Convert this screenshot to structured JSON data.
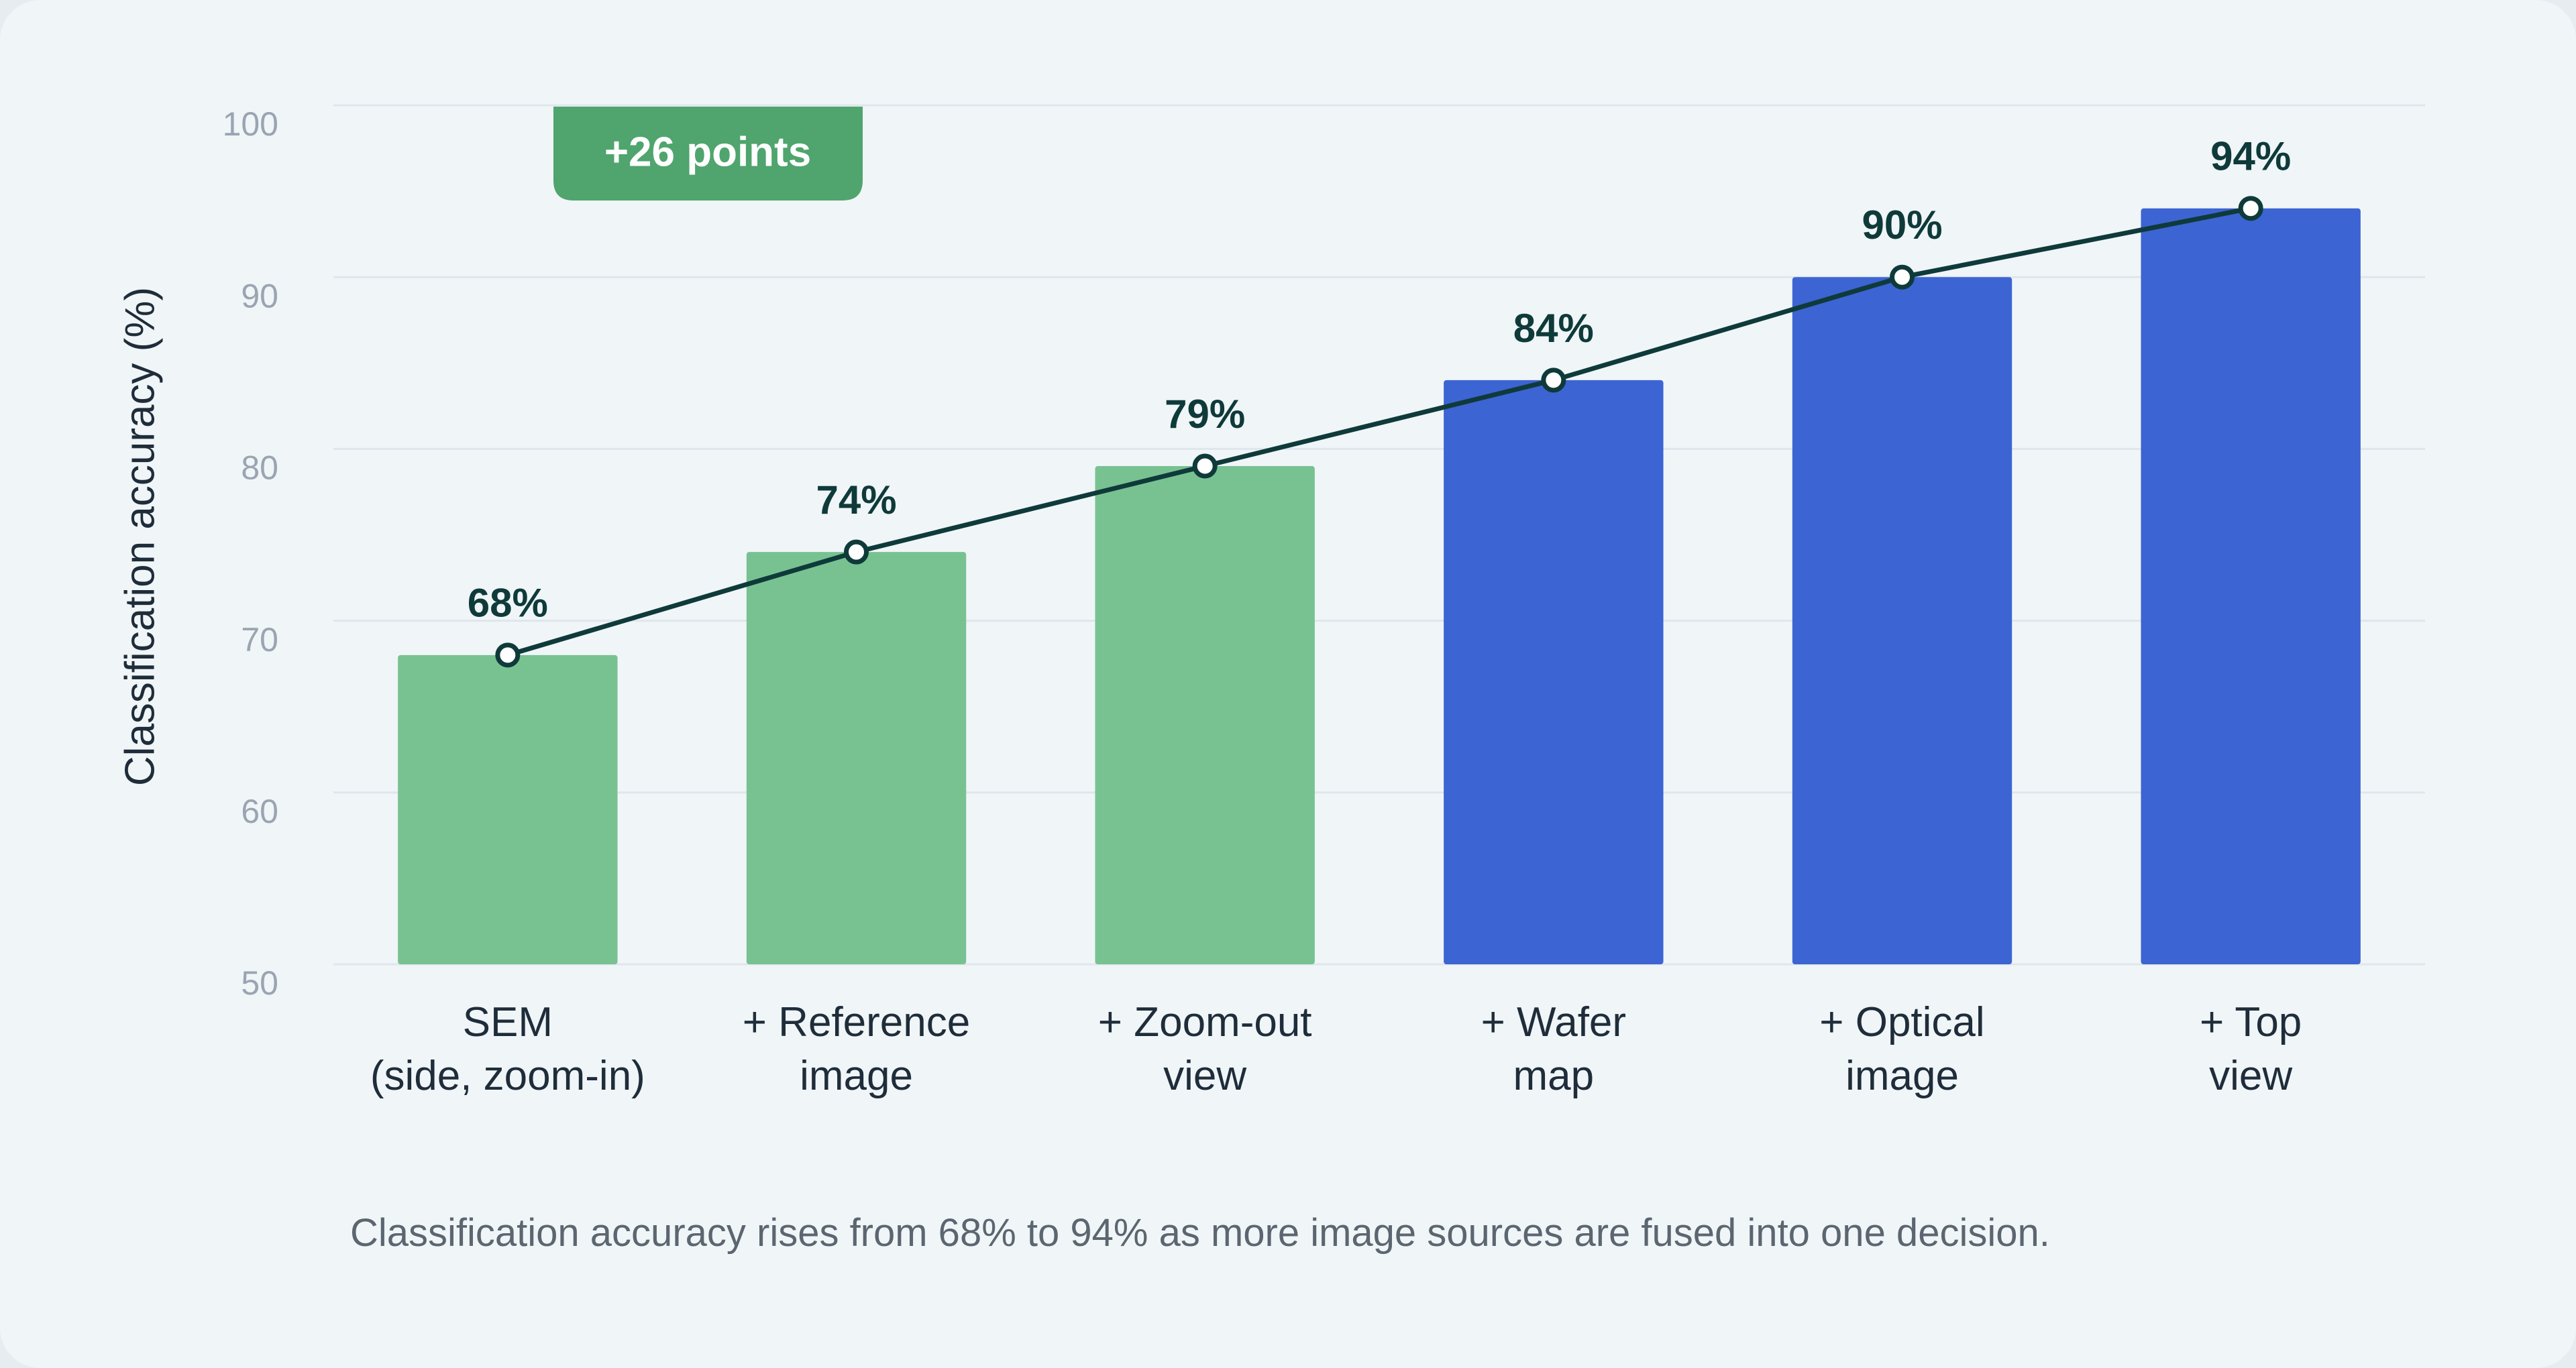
{
  "chart_data": {
    "type": "bar",
    "y_label": "Classification accuracy (%)",
    "annotation": "+26 points",
    "caption": "Classification accuracy rises from 68% to 94% as more image sources are fused into one decision.",
    "categories": [
      "SEM\n(side, zoom-in)",
      "+ Reference\nimage",
      "+ Zoom-out\nview",
      "+ Wafer\nmap",
      "+ Optical\nimage",
      "+ Top\nview"
    ],
    "values": [
      68,
      74,
      79,
      84,
      90,
      94
    ],
    "value_labels": [
      "68%",
      "74%",
      "79%",
      "84%",
      "90%",
      "94%"
    ],
    "colors": [
      "#78c291",
      "#78c291",
      "#78c291",
      "#3c64d2",
      "#3c64d2",
      "#3c64d2"
    ],
    "line_color": "#0f3a3a",
    "ylim": [
      50,
      100
    ],
    "yticks": [
      50,
      60,
      70,
      80,
      90,
      100
    ],
    "grid": true
  }
}
